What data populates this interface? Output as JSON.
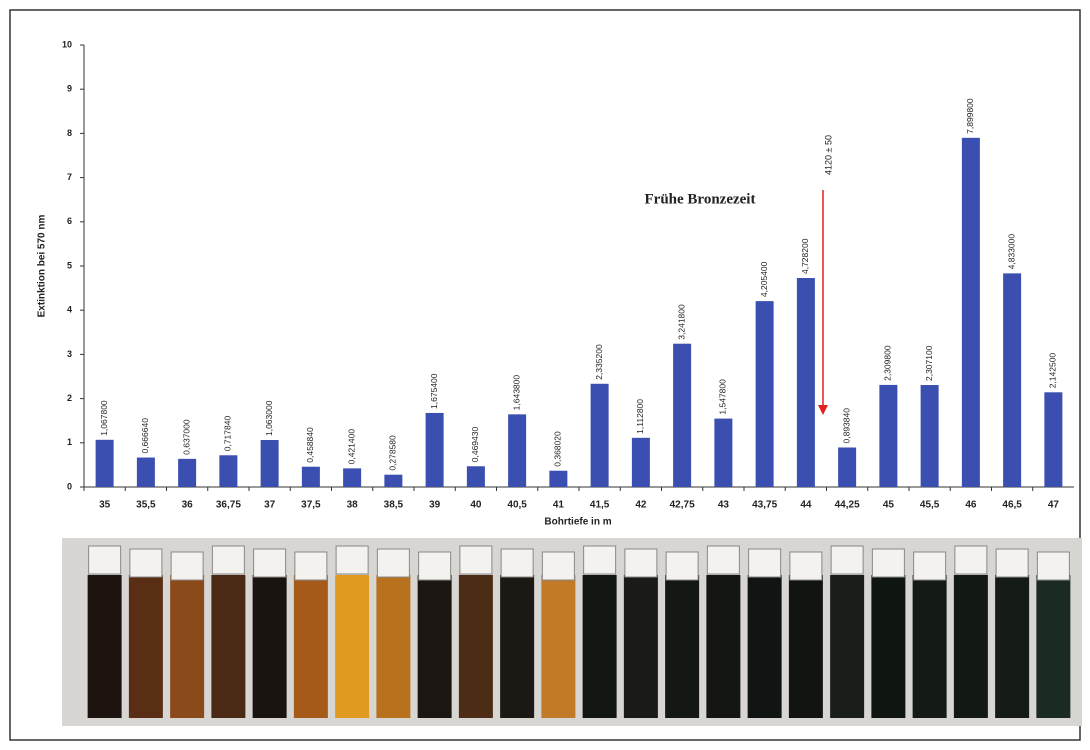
{
  "chart_data": {
    "type": "bar",
    "ylabel": "Extinktion bei 570 nm",
    "xlabel": "Bohrtiefe in m",
    "annotation": "Frühe Bronzezeit",
    "marker_label": "4120 ± 50",
    "categories": [
      "35",
      "35,5",
      "36",
      "36,75",
      "37",
      "37,5",
      "38",
      "38,5",
      "39",
      "40",
      "40,5",
      "41",
      "41,5",
      "42",
      "42,75",
      "43",
      "43,75",
      "44",
      "44,25",
      "45",
      "45,5",
      "46",
      "46,5",
      "47"
    ],
    "values": [
      1.0678,
      0.66664,
      0.637,
      0.71784,
      1.063,
      0.45884,
      0.4214,
      0.27858,
      1.6754,
      0.46943,
      1.6438,
      0.36802,
      2.3352,
      1.1128,
      3.2418,
      1.5478,
      4.2054,
      4.7282,
      0.89384,
      2.3098,
      2.3071,
      7.8998,
      4.833,
      2.1425
    ],
    "value_labels": [
      "1,067800",
      "0,666640",
      "0,637000",
      "0,717840",
      "1,063000",
      "0,458840",
      "0,421400",
      "0,278580",
      "1,675400",
      "0,469430",
      "1,643800",
      "0,368020",
      "2,335200",
      "1,112800",
      "3,241800",
      "1,547800",
      "4,205400",
      "4,728200",
      "0,893840",
      "2,309800",
      "2,307100",
      "7,899800",
      "4,833000",
      "2,142500"
    ],
    "color": "#3a4fb0",
    "ylim": [
      0,
      10
    ],
    "yticks": [
      0,
      1,
      2,
      3,
      4,
      5,
      6,
      7,
      8,
      9,
      10
    ]
  }
}
